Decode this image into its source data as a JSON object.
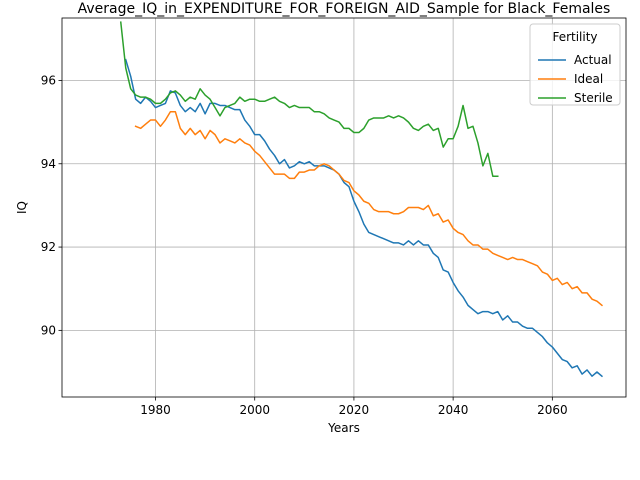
{
  "chart_data": {
    "type": "line",
    "title": "Average_IQ_in_EXPENDITURE_FOR_FOREIGN_AID_Sample for Black_Females",
    "xlabel": "Years",
    "ylabel": "IQ",
    "xlim": [
      1961.15,
      2074.85
    ],
    "ylim": [
      88.4,
      97.5
    ],
    "x_ticks": [
      1980,
      2000,
      2020,
      2040,
      2060
    ],
    "y_ticks": [
      90,
      92,
      94,
      96
    ],
    "grid": true,
    "legend": {
      "title": "Fertility",
      "position": "top-right"
    },
    "series": [
      {
        "name": "Actual",
        "color": "#1f77b4",
        "x": [
          1974,
          1975,
          1976,
          1977,
          1978,
          1979,
          1980,
          1981,
          1982,
          1983,
          1984,
          1985,
          1986,
          1987,
          1988,
          1989,
          1990,
          1991,
          1992,
          1993,
          1994,
          1995,
          1996,
          1997,
          1998,
          1999,
          2000,
          2001,
          2002,
          2003,
          2004,
          2005,
          2006,
          2007,
          2008,
          2009,
          2010,
          2011,
          2012,
          2013,
          2014,
          2015,
          2016,
          2017,
          2018,
          2019,
          2020,
          2021,
          2022,
          2023,
          2024,
          2025,
          2026,
          2027,
          2028,
          2029,
          2030,
          2031,
          2032,
          2033,
          2034,
          2035,
          2036,
          2037,
          2038,
          2039,
          2040,
          2041,
          2042,
          2043,
          2044,
          2045,
          2046,
          2047,
          2048,
          2049,
          2050,
          2051,
          2052,
          2053,
          2054,
          2055,
          2056,
          2057,
          2058,
          2059,
          2060,
          2061,
          2062,
          2063,
          2064,
          2065,
          2066,
          2067,
          2068,
          2069,
          2070
        ],
        "y": [
          96.5,
          96.1,
          95.55,
          95.45,
          95.6,
          95.5,
          95.35,
          95.4,
          95.45,
          95.75,
          95.7,
          95.4,
          95.25,
          95.35,
          95.25,
          95.45,
          95.2,
          95.45,
          95.45,
          95.4,
          95.4,
          95.35,
          95.3,
          95.3,
          95.05,
          94.9,
          94.7,
          94.7,
          94.55,
          94.35,
          94.2,
          94.0,
          94.1,
          93.9,
          93.95,
          94.05,
          94.0,
          94.05,
          93.95,
          93.95,
          93.95,
          93.9,
          93.85,
          93.75,
          93.55,
          93.45,
          93.1,
          92.85,
          92.55,
          92.35,
          92.3,
          92.25,
          92.2,
          92.15,
          92.1,
          92.1,
          92.05,
          92.15,
          92.05,
          92.15,
          92.05,
          92.05,
          91.85,
          91.75,
          91.45,
          91.4,
          91.15,
          90.95,
          90.8,
          90.6,
          90.5,
          90.4,
          90.45,
          90.45,
          90.4,
          90.45,
          90.25,
          90.35,
          90.2,
          90.2,
          90.1,
          90.05,
          90.05,
          89.95,
          89.85,
          89.7,
          89.6,
          89.45,
          89.3,
          89.25,
          89.1,
          89.15,
          88.95,
          89.05,
          88.9,
          89.0,
          88.9
        ]
      },
      {
        "name": "Ideal",
        "color": "#ff7f0e",
        "x": [
          1976,
          1977,
          1978,
          1979,
          1980,
          1981,
          1982,
          1983,
          1984,
          1985,
          1986,
          1987,
          1988,
          1989,
          1990,
          1991,
          1992,
          1993,
          1994,
          1995,
          1996,
          1997,
          1998,
          1999,
          2000,
          2001,
          2002,
          2003,
          2004,
          2005,
          2006,
          2007,
          2008,
          2009,
          2010,
          2011,
          2012,
          2013,
          2014,
          2015,
          2016,
          2017,
          2018,
          2019,
          2020,
          2021,
          2022,
          2023,
          2024,
          2025,
          2026,
          2027,
          2028,
          2029,
          2030,
          2031,
          2032,
          2033,
          2034,
          2035,
          2036,
          2037,
          2038,
          2039,
          2040,
          2041,
          2042,
          2043,
          2044,
          2045,
          2046,
          2047,
          2048,
          2049,
          2050,
          2051,
          2052,
          2053,
          2054,
          2055,
          2056,
          2057,
          2058,
          2059,
          2060,
          2061,
          2062,
          2063,
          2064,
          2065,
          2066,
          2067,
          2068,
          2069,
          2070
        ],
        "y": [
          94.9,
          94.85,
          94.95,
          95.05,
          95.05,
          94.9,
          95.05,
          95.25,
          95.25,
          94.85,
          94.7,
          94.85,
          94.7,
          94.8,
          94.6,
          94.8,
          94.7,
          94.5,
          94.6,
          94.55,
          94.5,
          94.6,
          94.5,
          94.45,
          94.3,
          94.2,
          94.05,
          93.9,
          93.75,
          93.75,
          93.75,
          93.65,
          93.65,
          93.8,
          93.8,
          93.85,
          93.85,
          93.95,
          94.0,
          93.95,
          93.85,
          93.75,
          93.6,
          93.55,
          93.35,
          93.25,
          93.1,
          93.05,
          92.9,
          92.85,
          92.85,
          92.85,
          92.8,
          92.8,
          92.85,
          92.95,
          92.95,
          92.95,
          92.9,
          93.0,
          92.75,
          92.8,
          92.6,
          92.65,
          92.45,
          92.35,
          92.3,
          92.15,
          92.05,
          92.05,
          91.95,
          91.95,
          91.85,
          91.8,
          91.75,
          91.7,
          91.75,
          91.7,
          91.7,
          91.65,
          91.6,
          91.55,
          91.4,
          91.35,
          91.2,
          91.25,
          91.1,
          91.15,
          91.0,
          91.05,
          90.9,
          90.9,
          90.75,
          90.7,
          90.6
        ]
      },
      {
        "name": "Sterile",
        "color": "#2ca02c",
        "x": [
          1973,
          1974,
          1975,
          1976,
          1977,
          1978,
          1979,
          1980,
          1981,
          1982,
          1983,
          1984,
          1985,
          1986,
          1987,
          1988,
          1989,
          1990,
          1991,
          1992,
          1993,
          1994,
          1995,
          1996,
          1997,
          1998,
          1999,
          2000,
          2001,
          2002,
          2003,
          2004,
          2005,
          2006,
          2007,
          2008,
          2009,
          2010,
          2011,
          2012,
          2013,
          2014,
          2015,
          2016,
          2017,
          2018,
          2019,
          2020,
          2021,
          2022,
          2023,
          2024,
          2025,
          2026,
          2027,
          2028,
          2029,
          2030,
          2031,
          2032,
          2033,
          2034,
          2035,
          2036,
          2037,
          2038,
          2039,
          2040,
          2041,
          2042,
          2043,
          2044,
          2045,
          2046,
          2047,
          2048,
          2049
        ],
        "y": [
          97.4,
          96.3,
          95.8,
          95.65,
          95.6,
          95.6,
          95.55,
          95.45,
          95.45,
          95.55,
          95.7,
          95.75,
          95.65,
          95.5,
          95.6,
          95.55,
          95.8,
          95.65,
          95.55,
          95.35,
          95.15,
          95.35,
          95.4,
          95.45,
          95.6,
          95.5,
          95.55,
          95.55,
          95.5,
          95.5,
          95.55,
          95.6,
          95.5,
          95.45,
          95.35,
          95.4,
          95.35,
          95.35,
          95.35,
          95.25,
          95.25,
          95.2,
          95.1,
          95.05,
          95.0,
          94.85,
          94.85,
          94.75,
          94.75,
          94.85,
          95.05,
          95.1,
          95.1,
          95.1,
          95.15,
          95.1,
          95.15,
          95.1,
          95.0,
          94.85,
          94.8,
          94.9,
          94.95,
          94.8,
          94.85,
          94.4,
          94.6,
          94.6,
          94.9,
          95.4,
          94.85,
          94.9,
          94.5,
          93.95,
          94.25,
          93.7,
          93.7
        ]
      }
    ]
  }
}
